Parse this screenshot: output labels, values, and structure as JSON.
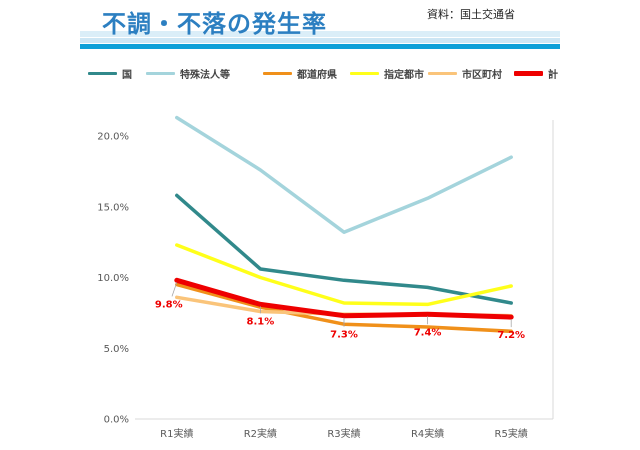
{
  "header": {
    "title": "不調・不落の発生率",
    "source": "資料：国土交通省"
  },
  "chart_data": {
    "type": "line",
    "title": "不調・不落の発生率",
    "xlabel": "",
    "ylabel": "",
    "categories": [
      "R1実績",
      "R2実績",
      "R3実績",
      "R4実績",
      "R5実績"
    ],
    "ylim": [
      0,
      20
    ],
    "yticks": [
      "0.0%",
      "5.0%",
      "10.0%",
      "15.0%",
      "20.0%"
    ],
    "grid": false,
    "legend_position": "top",
    "series": [
      {
        "name": "国",
        "color": "#31898b",
        "values": [
          15.8,
          10.6,
          9.8,
          9.3,
          8.2
        ]
      },
      {
        "name": "特殊法人等",
        "color": "#a4d4dc",
        "values": [
          21.3,
          17.6,
          13.2,
          15.6,
          18.5
        ]
      },
      {
        "name": "都道府県",
        "color": "#f0901a",
        "values": [
          9.5,
          7.9,
          6.7,
          6.5,
          6.2
        ]
      },
      {
        "name": "指定都市",
        "color": "#ffff1a",
        "values": [
          12.3,
          10.0,
          8.2,
          8.1,
          9.4
        ]
      },
      {
        "name": "市区町村",
        "color": "#fac47a",
        "values": [
          8.6,
          7.6,
          7.4,
          7.4,
          7.3
        ]
      },
      {
        "name": "計",
        "color": "#ee0000",
        "values": [
          9.8,
          8.1,
          7.3,
          7.4,
          7.2
        ]
      }
    ],
    "data_labels": {
      "series": "計",
      "color": "#ee0000",
      "labels": [
        "9.8%",
        "8.1%",
        "7.3%",
        "7.4%",
        "7.2%"
      ]
    }
  }
}
